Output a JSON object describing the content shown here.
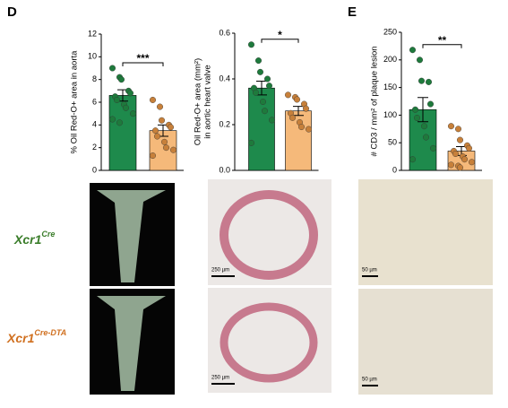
{
  "panels": [
    "D",
    "E"
  ],
  "chart_data": [
    {
      "type": "bar",
      "ylabel": [
        "% Oil Red-O+ area in aorta"
      ],
      "ylim": [
        0,
        12
      ],
      "yticks": [
        0,
        2,
        4,
        6,
        8,
        10,
        12
      ],
      "values": [
        6.6,
        3.5
      ],
      "errors": [
        0.5,
        0.5
      ],
      "colors": [
        "#1e8a4c",
        "#f5b97a"
      ],
      "point_colors": [
        "#1e7a3c",
        "#c7803a"
      ],
      "points": [
        [
          9.0,
          8.2,
          8.0,
          7.0,
          6.8,
          6.5,
          6.2,
          5.8,
          5.5,
          5.0,
          4.5,
          4.2
        ],
        [
          6.2,
          5.6,
          4.4,
          4.0,
          3.8,
          3.5,
          3.0,
          2.5,
          2.0,
          1.8,
          1.3
        ]
      ],
      "significance": "***"
    },
    {
      "type": "bar",
      "ylabel": [
        "Oil Red-O+ area (mm²)",
        "in aortic heart valve"
      ],
      "ylim": [
        0,
        0.6
      ],
      "yticks": [
        {
          "value": 0,
          "label": "0.0"
        },
        0.2,
        0.4,
        0.6
      ],
      "values": [
        0.36,
        0.26
      ],
      "errors": [
        0.03,
        0.02
      ],
      "colors": [
        "#1e8a4c",
        "#f5b97a"
      ],
      "point_colors": [
        "#1e7a3c",
        "#c7803a"
      ],
      "points": [
        [
          0.55,
          0.48,
          0.43,
          0.4,
          0.37,
          0.36,
          0.34,
          0.3,
          0.26,
          0.22,
          0.12
        ],
        [
          0.33,
          0.32,
          0.31,
          0.29,
          0.27,
          0.25,
          0.23,
          0.21,
          0.19,
          0.18
        ]
      ],
      "significance": "*"
    },
    {
      "type": "bar",
      "ylabel": [
        "# CD3 / mm² of plaque lesion"
      ],
      "ylim": [
        0,
        250
      ],
      "yticks": [
        0,
        50,
        100,
        150,
        200,
        250
      ],
      "values": [
        110,
        35
      ],
      "errors": [
        22,
        8
      ],
      "colors": [
        "#1e8a4c",
        "#f5b97a"
      ],
      "point_colors": [
        "#1e7a3c",
        "#c7803a"
      ],
      "points": [
        [
          218,
          200,
          162,
          160,
          120,
          110,
          95,
          80,
          60,
          40,
          20
        ],
        [
          80,
          75,
          55,
          45,
          40,
          35,
          30,
          25,
          20,
          15,
          10,
          8,
          5
        ]
      ],
      "significance": "**"
    }
  ],
  "rows": [
    {
      "name": "Xcr1",
      "sup": "Cre"
    },
    {
      "name": "Xcr1",
      "sup": "Cre-DTA"
    }
  ],
  "scale_bars": [
    "250 µm",
    "250 µm",
    "50 µm",
    "50 µm"
  ]
}
